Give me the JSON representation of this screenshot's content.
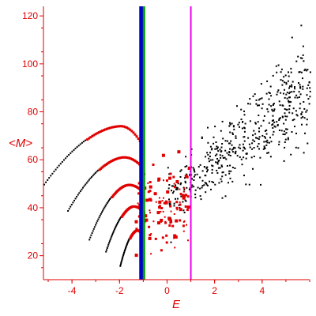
{
  "chart_data": {
    "type": "scatter",
    "title": "",
    "xlabel": "E",
    "ylabel": "<M>",
    "xlim": [
      -5.2,
      6.0
    ],
    "ylim": [
      10,
      124
    ],
    "xticks": [
      "-4",
      "-2",
      "0",
      "2",
      "4"
    ],
    "xtick_values": [
      -4,
      -2,
      0,
      2,
      4
    ],
    "yticks": [
      "20",
      "40",
      "60",
      "80",
      "100",
      "120"
    ],
    "ytick_values": [
      20,
      40,
      60,
      80,
      100,
      120
    ],
    "grid": false,
    "legend": "none",
    "colors": {
      "axis": "#e00000",
      "arcs": "#e00000",
      "cloud": "#000000",
      "line_blue": "#0000cc",
      "line_green": "#00a000",
      "line_magenta": "#ee00ee"
    },
    "vertical_lines": [
      {
        "x": -1.12,
        "color": "#0000cc"
      },
      {
        "x": -1.05,
        "color": "#0000cc"
      },
      {
        "x": -0.97,
        "color": "#00a000"
      },
      {
        "x": 1.0,
        "color": "#ee00ee"
      }
    ],
    "arcs": [
      {
        "series": "arc-1",
        "start": [
          -5.2,
          50
        ],
        "peak": [
          -2.0,
          74.5
        ],
        "end": [
          -1.05,
          66
        ]
      },
      {
        "series": "arc-2",
        "start": [
          -4.2,
          39
        ],
        "peak": [
          -1.85,
          61.5
        ],
        "end": [
          -1.05,
          57
        ]
      },
      {
        "series": "arc-3",
        "start": [
          -3.3,
          27
        ],
        "peak": [
          -1.65,
          50
        ],
        "end": [
          -1.05,
          47
        ]
      },
      {
        "series": "arc-4",
        "start": [
          -2.6,
          22
        ],
        "peak": [
          -1.45,
          41
        ],
        "end": [
          -1.05,
          39
        ]
      },
      {
        "series": "arc-5",
        "start": [
          -2.0,
          16
        ],
        "peak": [
          -1.3,
          31
        ],
        "end": [
          -1.05,
          29
        ]
      }
    ],
    "red_cluster": {
      "x_range": [
        -1.4,
        0.9
      ],
      "y_range": [
        25,
        70
      ],
      "count": 130
    },
    "black_cloud": {
      "x_range": [
        0.0,
        6.0
      ],
      "trend": {
        "slope": 8.0,
        "intercept": 43
      },
      "spread": 8.5,
      "count": 520
    }
  }
}
